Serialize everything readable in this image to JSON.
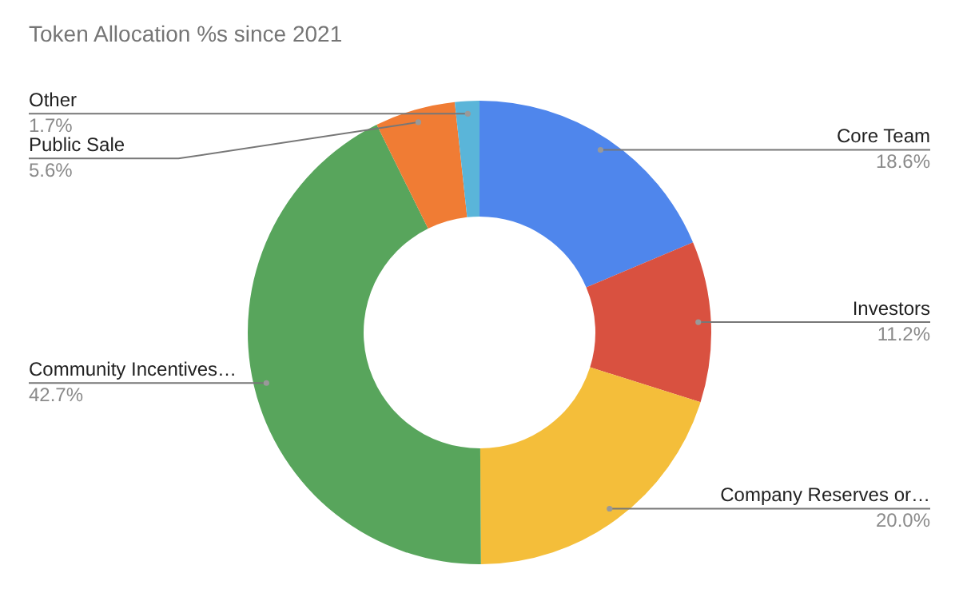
{
  "chart_data": {
    "type": "donut",
    "title": "Token Allocation %s since 2021",
    "categories": [
      "Core Team",
      "Investors",
      "Company Reserves or…",
      "Community Incentives…",
      "Public Sale",
      "Other"
    ],
    "values": [
      18.6,
      11.2,
      20.0,
      42.7,
      5.6,
      1.7
    ],
    "value_labels": [
      "18.6%",
      "11.2%",
      "20.0%",
      "42.7%",
      "5.6%",
      "1.7%"
    ],
    "colors": [
      "#4f86ec",
      "#d95140",
      "#f4be3a",
      "#58a55c",
      "#f07c34",
      "#5ab5d9"
    ],
    "legend": false
  }
}
